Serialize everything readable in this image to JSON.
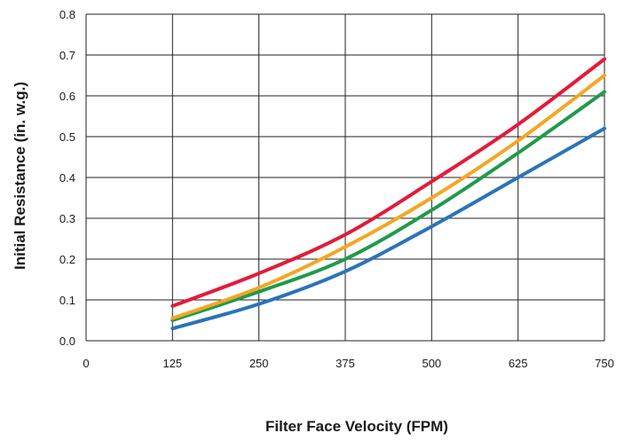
{
  "chart_data": {
    "type": "line",
    "title": "",
    "xlabel": "Filter Face Velocity (FPM)",
    "ylabel": "Initial Resistance (in. w.g.)",
    "xlim": [
      0,
      750
    ],
    "ylim": [
      0,
      0.8
    ],
    "x_ticks": [
      "0",
      "125",
      "250",
      "375",
      "500",
      "625",
      "750"
    ],
    "x_gridlines": [
      125,
      250,
      375,
      500,
      625,
      750
    ],
    "y_ticks": [
      "0.0",
      "0.1",
      "0.2",
      "0.3",
      "0.4",
      "0.5",
      "0.6",
      "0.7",
      "0.8"
    ],
    "grid": true,
    "legend": "none",
    "x": [
      125,
      250,
      375,
      500,
      625,
      750
    ],
    "series": [
      {
        "color": "#2a74b8",
        "values": [
          0.03,
          0.09,
          0.17,
          0.28,
          0.4,
          0.52
        ]
      },
      {
        "color": "#1f9a4b",
        "values": [
          0.05,
          0.12,
          0.2,
          0.32,
          0.46,
          0.61
        ]
      },
      {
        "color": "#f5a623",
        "values": [
          0.055,
          0.13,
          0.23,
          0.35,
          0.49,
          0.65
        ]
      },
      {
        "color": "#e31b3a",
        "values": [
          0.085,
          0.165,
          0.26,
          0.39,
          0.53,
          0.69
        ]
      }
    ]
  }
}
